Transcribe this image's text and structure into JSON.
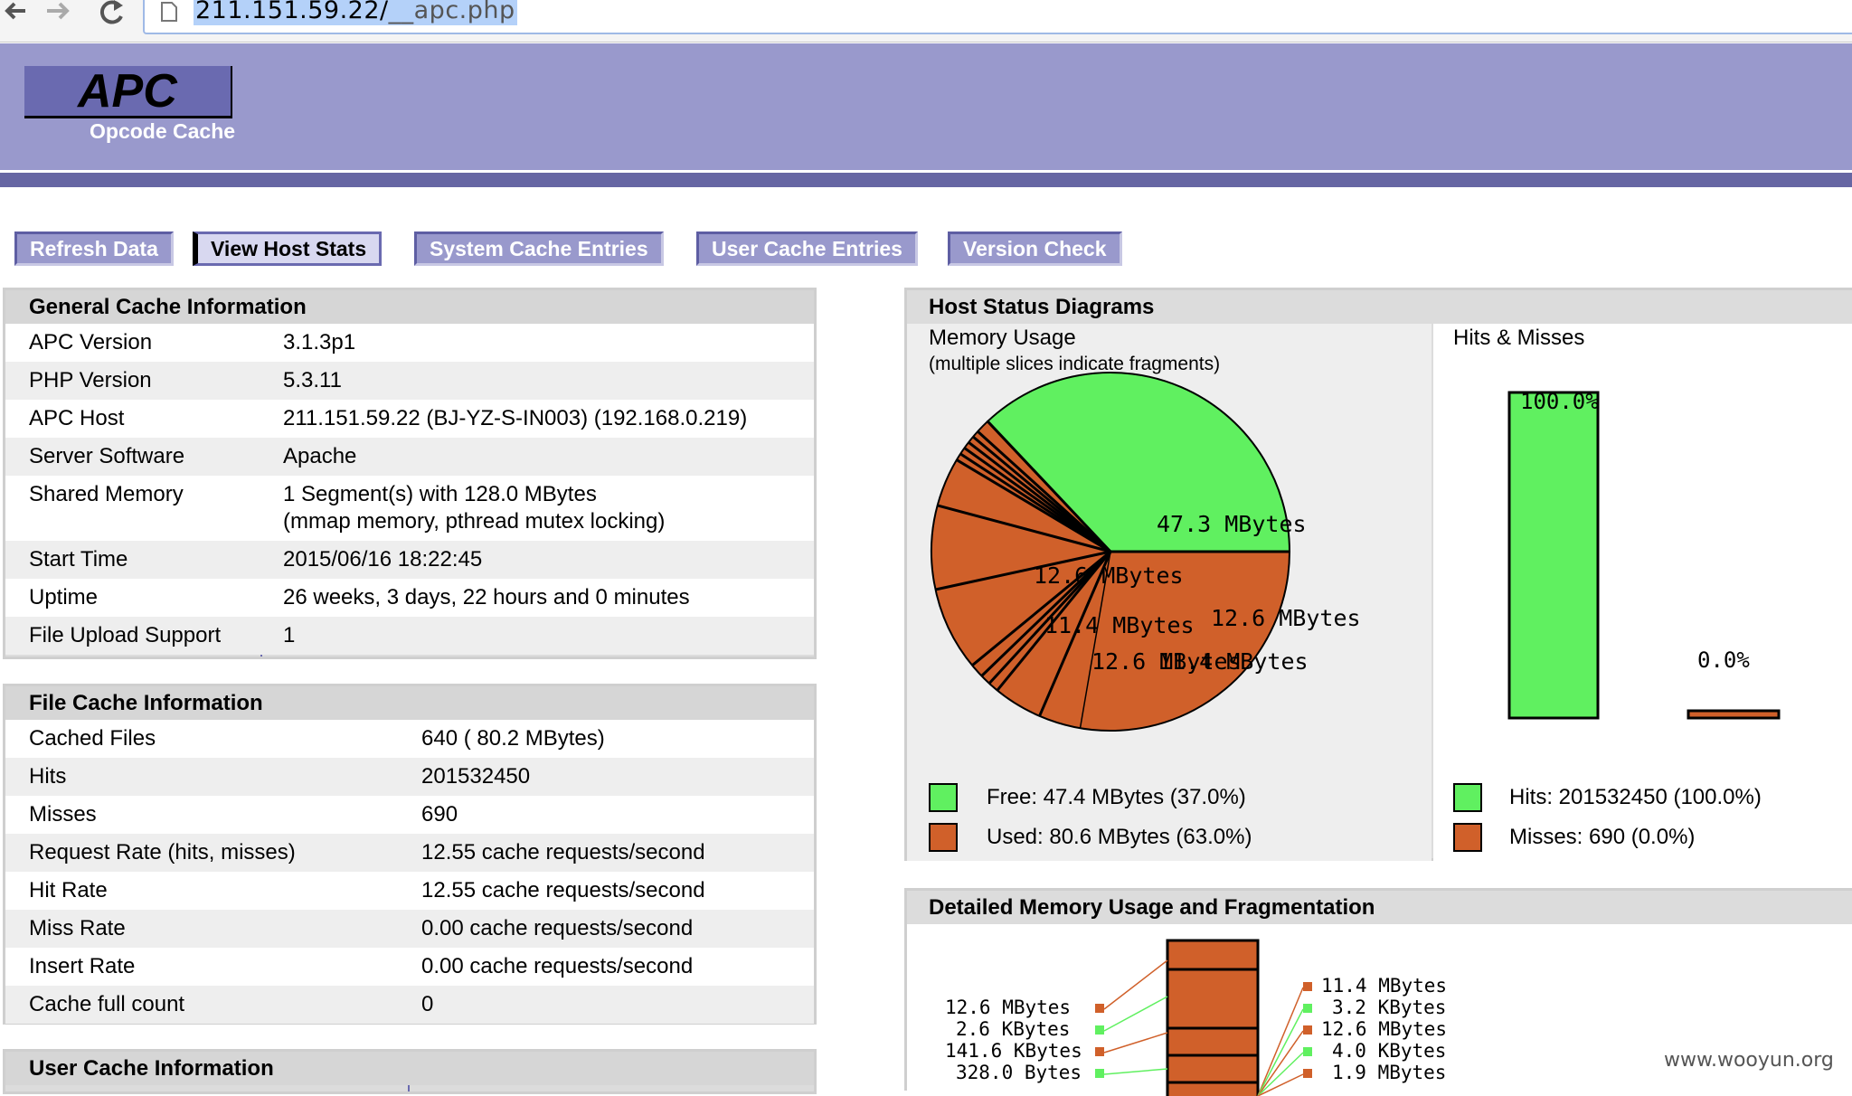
{
  "browser": {
    "url_host": "211.151.59.22/",
    "url_path": "__apc.php"
  },
  "header": {
    "logo": "APC",
    "subtitle": "Opcode Cache"
  },
  "menu": {
    "items": [
      {
        "label": "Refresh Data",
        "active": false
      },
      {
        "label": "View Host Stats",
        "active": true
      },
      {
        "label": "System Cache Entries",
        "active": false
      },
      {
        "label": "User Cache Entries",
        "active": false
      },
      {
        "label": "Version Check",
        "active": false
      }
    ]
  },
  "general": {
    "title": "General Cache Information",
    "rows": [
      {
        "key": "APC Version",
        "value": "3.1.3p1"
      },
      {
        "key": "PHP Version",
        "value": "5.3.11"
      },
      {
        "key": "APC Host",
        "value": "211.151.59.22 (BJ-YZ-S-IN003) (192.168.0.219)"
      },
      {
        "key": "Server Software",
        "value": "Apache"
      },
      {
        "key": "Shared Memory",
        "value": "1 Segment(s) with 128.0 MBytes",
        "value2": "(mmap memory, pthread mutex locking)"
      },
      {
        "key": "Start Time",
        "value": "2015/06/16 18:22:45"
      },
      {
        "key": "Uptime",
        "value": "26 weeks, 3 days, 22 hours and 0 minutes"
      },
      {
        "key": "File Upload Support",
        "value": "1"
      }
    ]
  },
  "file_cache": {
    "title": "File Cache Information",
    "rows": [
      {
        "key": "Cached Files",
        "value": "640 ( 80.2 MBytes)"
      },
      {
        "key": "Hits",
        "value": "201532450"
      },
      {
        "key": "Misses",
        "value": "690"
      },
      {
        "key": "Request Rate (hits, misses)",
        "value": "12.55 cache requests/second"
      },
      {
        "key": "Hit Rate",
        "value": "12.55 cache requests/second"
      },
      {
        "key": "Miss Rate",
        "value": "0.00 cache requests/second"
      },
      {
        "key": "Insert Rate",
        "value": "0.00 cache requests/second"
      },
      {
        "key": "Cache full count",
        "value": "0"
      }
    ]
  },
  "user_cache": {
    "title": "User Cache Information"
  },
  "host_status": {
    "title": "Host Status Diagrams",
    "memory": {
      "title": "Memory Usage",
      "note": "(multiple slices indicate fragments)",
      "free_label": "Free: 47.4 MBytes (37.0%)",
      "used_label": "Used: 80.6 MBytes (63.0%)",
      "slice_labels": [
        "47.3 MBytes",
        "12.6 MBytes",
        "11.4 MBytes",
        "12.6 MBytes",
        "12.6 MBytes",
        "11.4 MBytes"
      ]
    },
    "hits": {
      "title": "Hits & Misses",
      "hits_label": "Hits: 201532450 (100.0%)",
      "misses_label": "Misses: 690 (0.0%)",
      "hits_pct_label": "100.0%",
      "misses_pct_label": "0.0%"
    },
    "colors": {
      "free": "#60f060",
      "used": "#d0602a"
    }
  },
  "fragmentation": {
    "title": "Detailed Memory Usage and Fragmentation",
    "left_labels": [
      "12.6 MBytes",
      "2.6 KBytes",
      "141.6 KBytes",
      "328.0 Bytes"
    ],
    "right_labels": [
      "11.4 MBytes",
      "3.2 KBytes",
      "12.6 MBytes",
      "4.0 KBytes",
      "1.9 MBytes"
    ]
  },
  "chart_data": [
    {
      "type": "pie",
      "title": "Memory Usage",
      "series": [
        {
          "name": "Free",
          "values": [
            47.4
          ]
        },
        {
          "name": "Used",
          "values": [
            80.6
          ]
        }
      ],
      "slice_values_mbytes": [
        47.3,
        12.6,
        11.4,
        12.6,
        12.6,
        11.4
      ],
      "units": "MBytes"
    },
    {
      "type": "bar",
      "title": "Hits & Misses",
      "categories": [
        "Hits",
        "Misses"
      ],
      "values": [
        100.0,
        0.0
      ],
      "ylabel": "",
      "units": "%"
    }
  ],
  "watermark": "www.wooyun.org"
}
